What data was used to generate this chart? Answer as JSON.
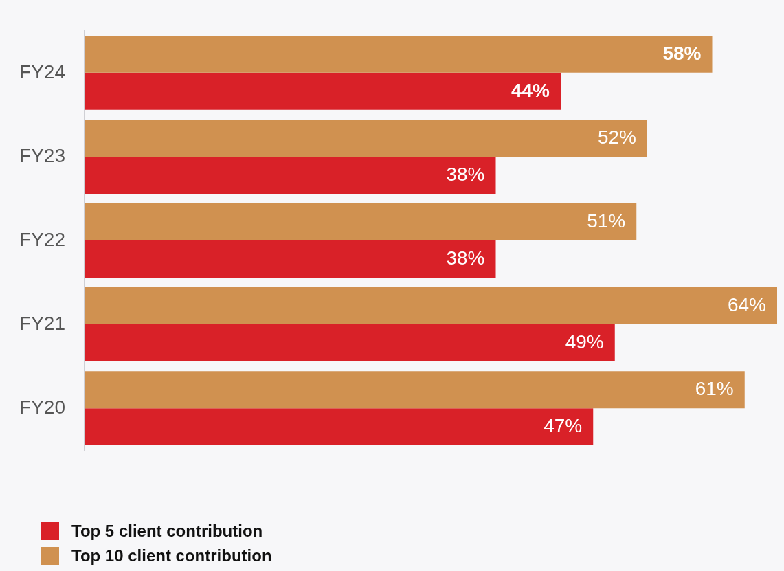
{
  "chart_data": {
    "type": "bar",
    "orientation": "horizontal",
    "categories": [
      "FY24",
      "FY23",
      "FY22",
      "FY21",
      "FY20"
    ],
    "series": [
      {
        "name": "Top 10 client contribution",
        "color": "#d09150",
        "values": [
          58,
          52,
          51,
          64,
          61
        ],
        "value_labels": [
          "58%",
          "52%",
          "51%",
          "64%",
          "61%"
        ]
      },
      {
        "name": "Top 5 client contribution",
        "color": "#d92128",
        "values": [
          44,
          38,
          38,
          49,
          47
        ],
        "value_labels": [
          "44%",
          "38%",
          "38%",
          "49%",
          "47%"
        ]
      }
    ],
    "xlim": [
      0,
      64
    ],
    "tick_labels": "y",
    "grid": false,
    "legend": "bottom left"
  }
}
